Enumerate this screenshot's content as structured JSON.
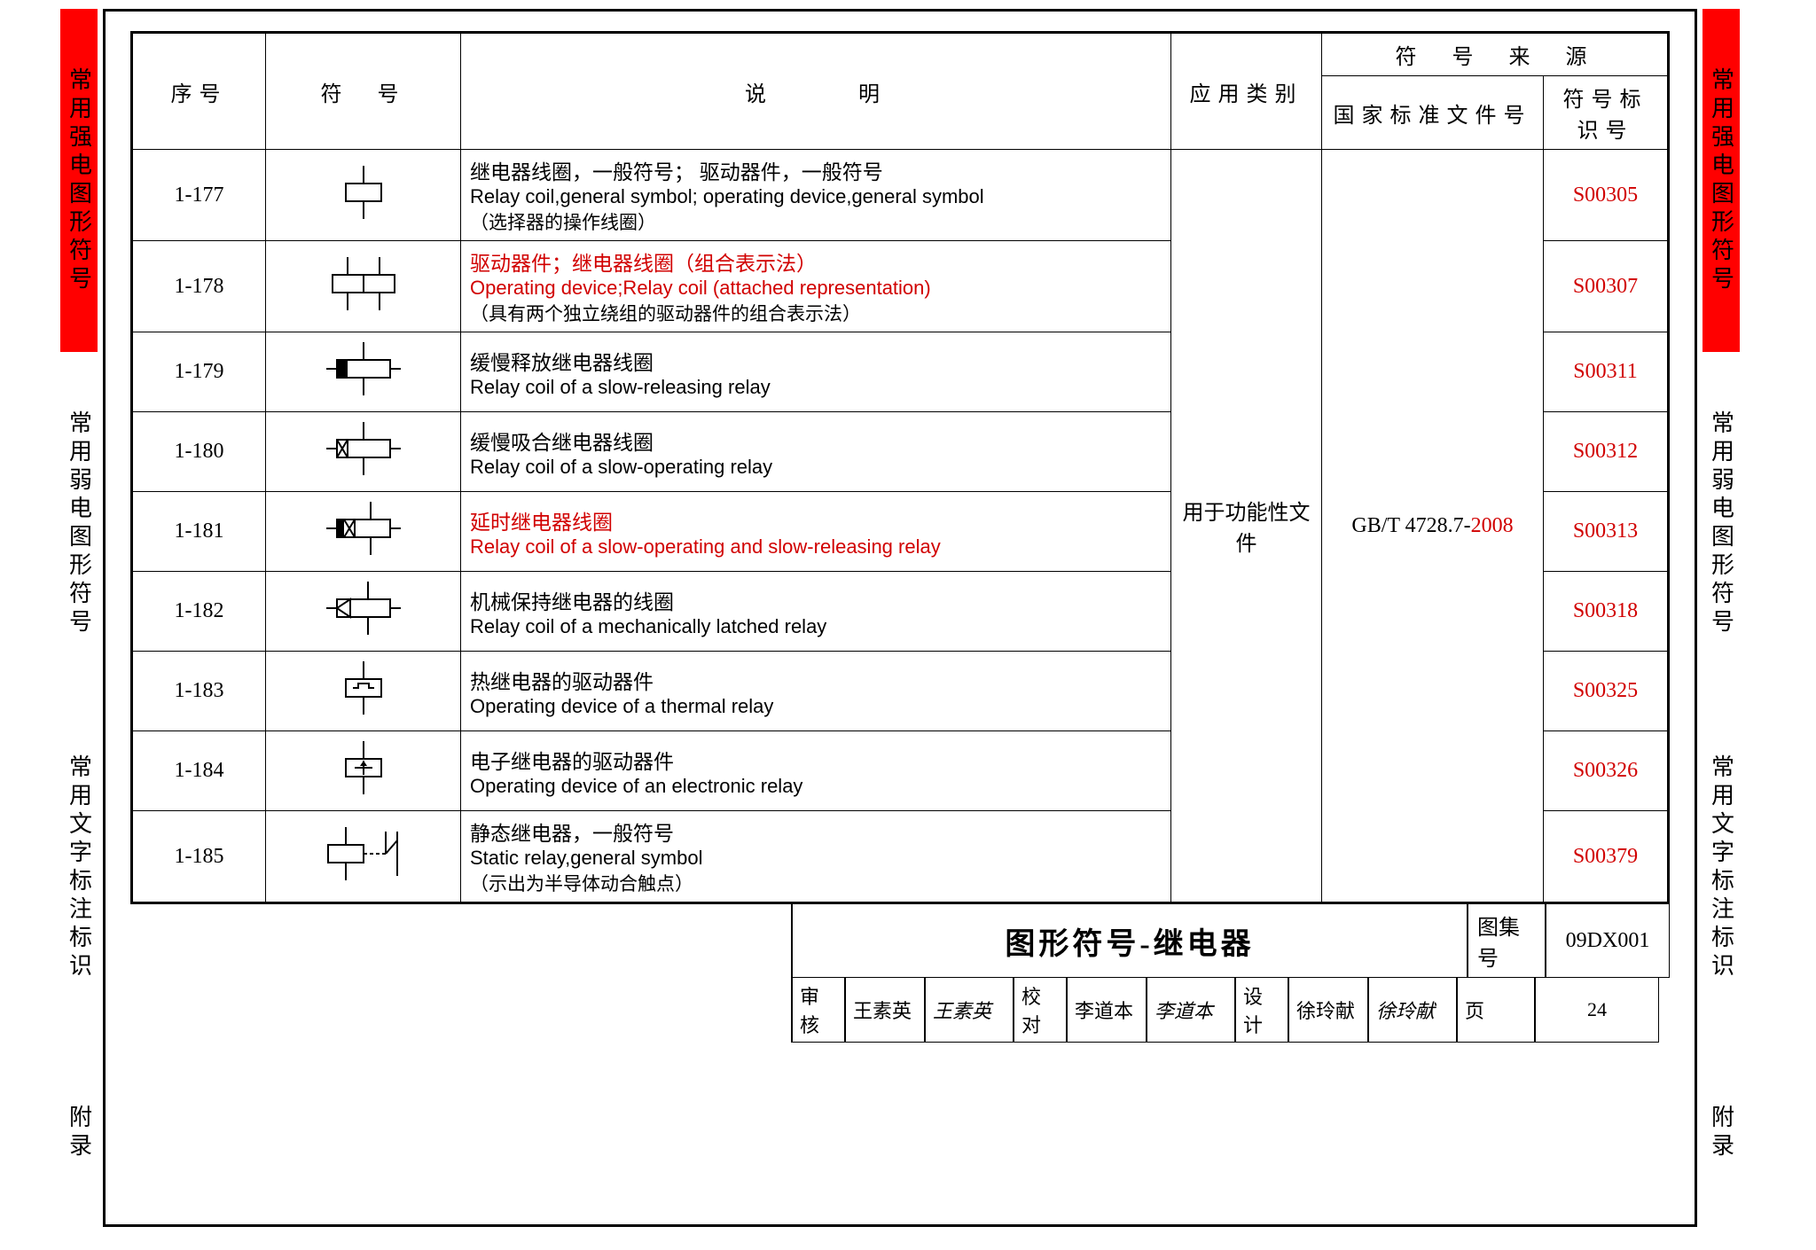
{
  "sidetabs": {
    "segments": [
      {
        "text": "常用强电图形符号",
        "active": true
      },
      {
        "text": "常用弱电图形符号",
        "active": false
      },
      {
        "text": "常用文字标注标识",
        "active": false
      },
      {
        "text": "附录",
        "active": false
      }
    ]
  },
  "table": {
    "headers": {
      "seq": "序号",
      "sym": "符　号",
      "desc": "说　　　明",
      "cat": "应用类别",
      "source": "符　号　来　源",
      "std": "国家标准文件号",
      "id": "符号标识号"
    },
    "category": "用于功能性文件",
    "standard": "GB/T 4728.7-",
    "standard_year": "2008",
    "rows": [
      {
        "seq": "1-177",
        "sym": "coil-basic",
        "highlight": false,
        "cn": "继电器线圈，一般符号； 驱动器件，一般符号",
        "en": "Relay coil,general symbol; operating device,general symbol",
        "sub": "（选择器的操作线圈）",
        "id": "S00305"
      },
      {
        "seq": "1-178",
        "sym": "coil-double",
        "highlight": true,
        "cn": "驱动器件；继电器线圈（组合表示法）",
        "en": "Operating device;Relay coil (attached representation)",
        "sub": "（具有两个独立绕组的驱动器件的组合表示法）",
        "id": "S00307"
      },
      {
        "seq": "1-179",
        "sym": "coil-slow-release",
        "highlight": false,
        "cn": "缓慢释放继电器线圈",
        "en": "Relay coil of a slow-releasing relay",
        "sub": "",
        "id": "S00311"
      },
      {
        "seq": "1-180",
        "sym": "coil-slow-operate",
        "highlight": false,
        "cn": "缓慢吸合继电器线圈",
        "en": "Relay coil of a slow-operating relay",
        "sub": "",
        "id": "S00312"
      },
      {
        "seq": "1-181",
        "sym": "coil-slow-both",
        "highlight": true,
        "cn": "延时继电器线圈",
        "en": "Relay coil of a slow-operating and slow-releasing relay",
        "sub": "",
        "id": "S00313"
      },
      {
        "seq": "1-182",
        "sym": "coil-latched",
        "highlight": false,
        "cn": "机械保持继电器的线圈",
        "en": "Relay coil of a mechanically latched relay",
        "sub": "",
        "id": "S00318"
      },
      {
        "seq": "1-183",
        "sym": "coil-thermal",
        "highlight": false,
        "cn": "热继电器的驱动器件",
        "en": "Operating device of a thermal relay",
        "sub": "",
        "id": "S00325"
      },
      {
        "seq": "1-184",
        "sym": "coil-electronic",
        "highlight": false,
        "cn": "电子继电器的驱动器件",
        "en": "Operating device of an electronic relay",
        "sub": "",
        "id": "S00326"
      },
      {
        "seq": "1-185",
        "sym": "coil-static",
        "highlight": false,
        "cn": "静态继电器，一般符号",
        "en": "Static relay,general symbol",
        "sub": "（示出为半导体动合触点）",
        "id": "S00379"
      }
    ]
  },
  "titleblock": {
    "title": "图形符号-继电器",
    "set_label": "图集号",
    "set_value": "09DX001",
    "page_label": "页",
    "page_value": "24",
    "approval": [
      {
        "role": "审核",
        "name": "王素英",
        "sig": "王素英"
      },
      {
        "role": "校对",
        "name": "李道本",
        "sig": "李道本"
      },
      {
        "role": "设计",
        "name": "徐玲献",
        "sig": "徐玲献"
      }
    ]
  },
  "colors": {
    "highlight": "#d10000",
    "tab_active": "#f00",
    "border": "#000"
  }
}
